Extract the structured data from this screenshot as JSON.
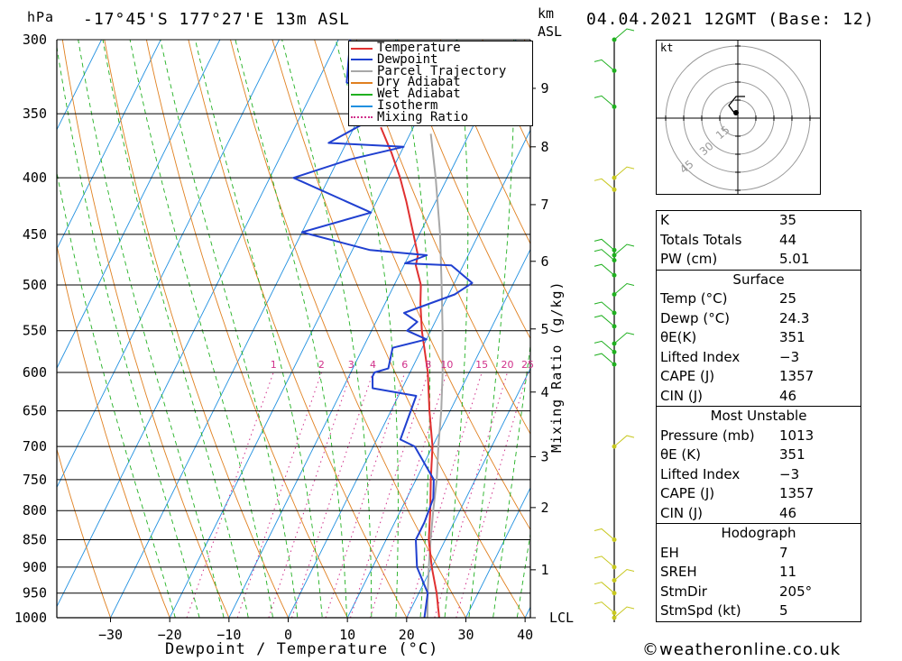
{
  "header": {
    "pressure_unit": "hPa",
    "location": "-17°45'S 177°27'E 13m ASL",
    "height_unit": "km",
    "height_ref": "ASL",
    "datetime": "04.04.2021 12GMT (Base: 12)"
  },
  "chart_data": {
    "type": "skew-t",
    "xlabel": "Dewpoint / Temperature (°C)",
    "ylabel_left": "hPa",
    "ylabel_right": "Mixing Ratio (g/kg)",
    "pressure_levels": [
      300,
      350,
      400,
      450,
      500,
      550,
      600,
      650,
      700,
      750,
      800,
      850,
      900,
      950,
      1000
    ],
    "temperature_ticks": [
      -30,
      -20,
      -10,
      0,
      10,
      20,
      30,
      40
    ],
    "height_ticks": [
      {
        "km": 9,
        "p": 332
      },
      {
        "km": 8,
        "p": 375
      },
      {
        "km": 7,
        "p": 423
      },
      {
        "km": 6,
        "p": 476
      },
      {
        "km": 5,
        "p": 548
      },
      {
        "km": 4,
        "p": 625
      },
      {
        "km": 3,
        "p": 715
      },
      {
        "km": 2,
        "p": 795
      },
      {
        "km": 1,
        "p": 905
      }
    ],
    "lcl_label": "LCL",
    "mixing_ratio_labels": [
      "1",
      "2",
      "3",
      "4",
      "6",
      "8",
      "10",
      "15",
      "20",
      "25"
    ],
    "mixing_ratio_values": [
      1,
      2,
      3,
      4,
      6,
      8,
      10,
      15,
      20,
      25
    ],
    "legend": [
      "Temperature",
      "Dewpoint",
      "Parcel Trajectory",
      "Dry Adiabat",
      "Wet Adiabat",
      "Isotherm",
      "Mixing Ratio"
    ],
    "colors": {
      "temperature": "#e03030",
      "dewpoint": "#2040d0",
      "parcel": "#a8a8a8",
      "dry_adiabat": "#e08020",
      "wet_adiabat": "#20b020",
      "isotherm": "#2090e0",
      "mixing_ratio": "#d0308a",
      "wind": "#c8c820"
    },
    "temperature_profile": [
      {
        "p": 1013,
        "t": 25
      },
      {
        "p": 1000,
        "t": 25.5
      },
      {
        "p": 950,
        "t": 23
      },
      {
        "p": 900,
        "t": 20
      },
      {
        "p": 850,
        "t": 17.2
      },
      {
        "p": 800,
        "t": 15
      },
      {
        "p": 750,
        "t": 12.5
      },
      {
        "p": 700,
        "t": 10
      },
      {
        "p": 650,
        "t": 6.5
      },
      {
        "p": 600,
        "t": 3
      },
      {
        "p": 550,
        "t": -1.5
      },
      {
        "p": 520,
        "t": -4
      },
      {
        "p": 500,
        "t": -5.5
      },
      {
        "p": 480,
        "t": -8
      },
      {
        "p": 470,
        "t": -8.5
      },
      {
        "p": 450,
        "t": -11
      },
      {
        "p": 420,
        "t": -15
      },
      {
        "p": 400,
        "t": -18
      },
      {
        "p": 380,
        "t": -21.5
      },
      {
        "p": 360,
        "t": -25.5
      }
    ],
    "dewpoint_profile": [
      {
        "p": 1013,
        "t": 24.3
      },
      {
        "p": 1000,
        "t": 23
      },
      {
        "p": 950,
        "t": 21.5
      },
      {
        "p": 900,
        "t": 17.5
      },
      {
        "p": 850,
        "t": 15
      },
      {
        "p": 820,
        "t": 15
      },
      {
        "p": 780,
        "t": 14.5
      },
      {
        "p": 750,
        "t": 13
      },
      {
        "p": 700,
        "t": 7
      },
      {
        "p": 690,
        "t": 4
      },
      {
        "p": 630,
        "t": 3
      },
      {
        "p": 620,
        "t": -5
      },
      {
        "p": 605,
        "t": -6
      },
      {
        "p": 600,
        "t": -6
      },
      {
        "p": 595,
        "t": -4
      },
      {
        "p": 570,
        "t": -5
      },
      {
        "p": 560,
        "t": 0
      },
      {
        "p": 550,
        "t": -4
      },
      {
        "p": 540,
        "t": -3
      },
      {
        "p": 530,
        "t": -6
      },
      {
        "p": 510,
        "t": 1
      },
      {
        "p": 498,
        "t": 3
      },
      {
        "p": 480,
        "t": -2
      },
      {
        "p": 478,
        "t": -10
      },
      {
        "p": 470,
        "t": -7
      },
      {
        "p": 465,
        "t": -17
      },
      {
        "p": 448,
        "t": -30
      },
      {
        "p": 430,
        "t": -20
      },
      {
        "p": 400,
        "t": -36
      },
      {
        "p": 385,
        "t": -28
      },
      {
        "p": 375,
        "t": -20
      },
      {
        "p": 372,
        "t": -33
      },
      {
        "p": 355,
        "t": -28
      },
      {
        "p": 340,
        "t": -26
      },
      {
        "p": 328,
        "t": -35
      },
      {
        "p": 300,
        "t": -38
      }
    ],
    "parcel_profile": [
      {
        "p": 1000,
        "t": 23.5
      },
      {
        "p": 950,
        "t": 21.5
      },
      {
        "p": 900,
        "t": 19.5
      },
      {
        "p": 850,
        "t": 17.5
      },
      {
        "p": 800,
        "t": 15.5
      },
      {
        "p": 750,
        "t": 13.5
      },
      {
        "p": 700,
        "t": 11
      },
      {
        "p": 650,
        "t": 8.5
      },
      {
        "p": 600,
        "t": 5.5
      },
      {
        "p": 550,
        "t": 2
      },
      {
        "p": 500,
        "t": -2
      },
      {
        "p": 450,
        "t": -6.5
      },
      {
        "p": 400,
        "t": -12
      },
      {
        "p": 365,
        "t": -16.5
      }
    ],
    "wind_levels": [
      1000,
      990,
      950,
      925,
      900,
      850,
      700,
      590,
      575,
      565,
      545,
      530,
      510,
      490,
      475,
      470,
      465,
      410,
      400,
      345,
      320,
      300
    ]
  },
  "hodograph": {
    "unit": "kt",
    "ring_labels": [
      "15",
      "30",
      "45"
    ]
  },
  "indices": {
    "top": [
      {
        "label": "K",
        "value": "35"
      },
      {
        "label": "Totals Totals",
        "value": "44"
      },
      {
        "label": "PW (cm)",
        "value": "5.01"
      }
    ],
    "surface": {
      "title": "Surface",
      "rows": [
        {
          "label": "Temp (°C)",
          "value": "25"
        },
        {
          "label": "Dewp (°C)",
          "value": "24.3"
        },
        {
          "label": "θE(K)",
          "value": "351"
        },
        {
          "label": "Lifted Index",
          "value": "-3"
        },
        {
          "label": "CAPE (J)",
          "value": "1357"
        },
        {
          "label": "CIN (J)",
          "value": "46"
        }
      ]
    },
    "most_unstable": {
      "title": "Most Unstable",
      "rows": [
        {
          "label": "Pressure (mb)",
          "value": "1013"
        },
        {
          "label": "θE (K)",
          "value": "351"
        },
        {
          "label": "Lifted Index",
          "value": "-3"
        },
        {
          "label": "CAPE (J)",
          "value": "1357"
        },
        {
          "label": "CIN (J)",
          "value": "46"
        }
      ]
    },
    "hodograph": {
      "title": "Hodograph",
      "rows": [
        {
          "label": "EH",
          "value": "7"
        },
        {
          "label": "SREH",
          "value": "11"
        },
        {
          "label": "StmDir",
          "value": "205°"
        },
        {
          "label": "StmSpd (kt)",
          "value": "5"
        }
      ]
    }
  },
  "footer": {
    "copyright": "©weatheronline.co.uk"
  }
}
